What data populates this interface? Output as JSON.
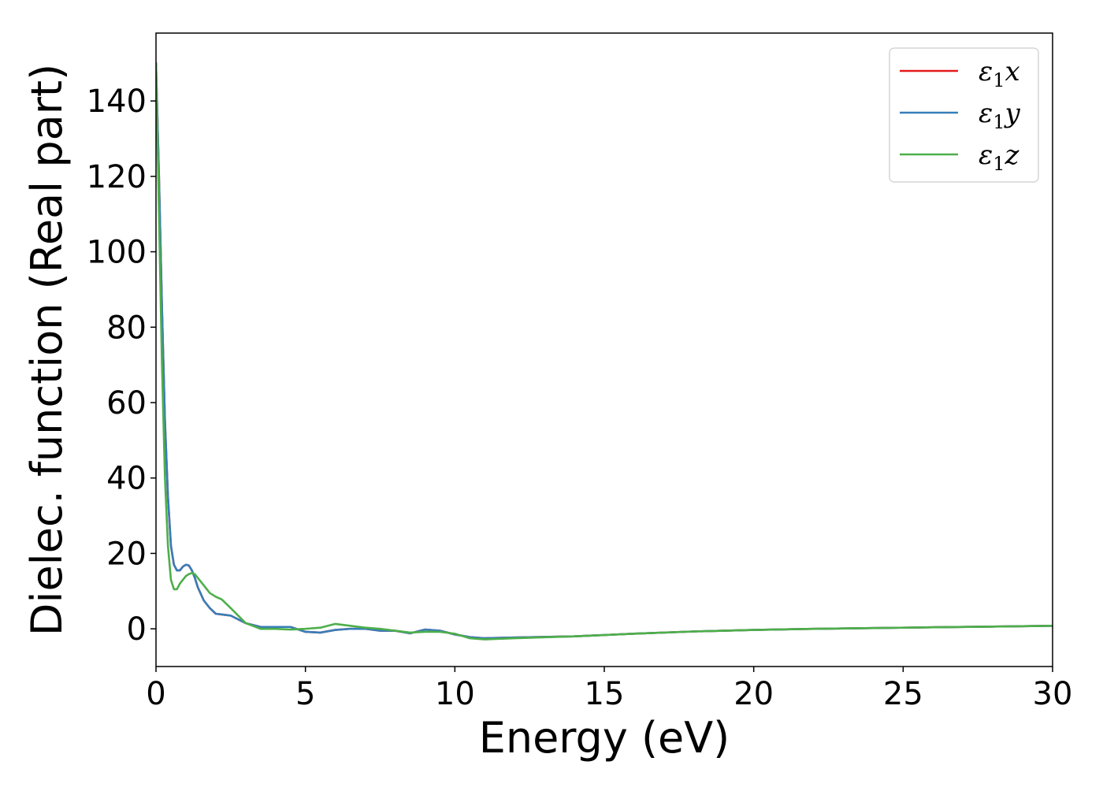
{
  "chart_data": {
    "type": "line",
    "xlabel": "Energy (eV)",
    "ylabel": "Dielec. function (Real part)",
    "xlim": [
      0,
      30
    ],
    "ylim": [
      -10,
      158
    ],
    "xticks": [
      0,
      5,
      10,
      15,
      20,
      25,
      30
    ],
    "yticks": [
      0,
      20,
      40,
      60,
      80,
      100,
      120,
      140
    ],
    "grid": false,
    "legend_position": "top-right",
    "series": [
      {
        "name": "ε1x",
        "label_base": "ε",
        "label_sub": "1",
        "label_var": "x",
        "color": "#e41a1c",
        "x": [
          0,
          0.1,
          0.2,
          0.3,
          0.4,
          0.5,
          0.6,
          0.7,
          0.8,
          0.9,
          1.0,
          1.1,
          1.2,
          1.3,
          1.4,
          1.6,
          1.8,
          2.0,
          2.2,
          2.5,
          3.0,
          3.5,
          4.0,
          4.5,
          5.0,
          5.5,
          6.0,
          6.5,
          7.0,
          7.5,
          8.0,
          8.5,
          9.0,
          9.5,
          10.0,
          10.5,
          11.0,
          12.0,
          14.0,
          16.0,
          18.0,
          20.0,
          22.0,
          24.0,
          26.0,
          28.0,
          30.0
        ],
        "values": [
          150,
          120,
          85,
          55,
          35,
          22,
          17,
          15.5,
          15.5,
          16.5,
          17,
          16.8,
          15.5,
          13.5,
          11,
          7.5,
          5.5,
          4,
          3.8,
          3.5,
          1.5,
          0.5,
          0.5,
          0.5,
          -0.8,
          -1,
          -0.3,
          0,
          0,
          -0.5,
          -0.5,
          -1.2,
          -0.2,
          -0.5,
          -1.5,
          -2.2,
          -2.5,
          -2.3,
          -2,
          -1.3,
          -0.7,
          -0.3,
          0,
          0.2,
          0.4,
          0.6,
          0.8
        ]
      },
      {
        "name": "ε1y",
        "label_base": "ε",
        "label_sub": "1",
        "label_var": "y",
        "color": "#377eb8",
        "x": [
          0,
          0.1,
          0.2,
          0.3,
          0.4,
          0.5,
          0.6,
          0.7,
          0.8,
          0.9,
          1.0,
          1.1,
          1.2,
          1.3,
          1.4,
          1.6,
          1.8,
          2.0,
          2.2,
          2.5,
          3.0,
          3.5,
          4.0,
          4.5,
          5.0,
          5.5,
          6.0,
          6.5,
          7.0,
          7.5,
          8.0,
          8.5,
          9.0,
          9.5,
          10.0,
          10.5,
          11.0,
          12.0,
          14.0,
          16.0,
          18.0,
          20.0,
          22.0,
          24.0,
          26.0,
          28.0,
          30.0
        ],
        "values": [
          150,
          120,
          85,
          55,
          35,
          22,
          17,
          15.5,
          15.5,
          16.5,
          17,
          16.8,
          15.5,
          13.5,
          11,
          7.5,
          5.5,
          4,
          3.8,
          3.5,
          1.5,
          0.5,
          0.5,
          0.5,
          -0.8,
          -1,
          -0.3,
          0,
          0,
          -0.5,
          -0.5,
          -1.2,
          -0.2,
          -0.5,
          -1.5,
          -2.2,
          -2.5,
          -2.3,
          -2,
          -1.3,
          -0.7,
          -0.3,
          0,
          0.2,
          0.4,
          0.6,
          0.8
        ]
      },
      {
        "name": "ε1z",
        "label_base": "ε",
        "label_sub": "1",
        "label_var": "z",
        "color": "#4daf4a",
        "x": [
          0,
          0.1,
          0.2,
          0.3,
          0.4,
          0.5,
          0.6,
          0.7,
          0.8,
          0.9,
          1.0,
          1.1,
          1.2,
          1.3,
          1.4,
          1.6,
          1.8,
          2.0,
          2.2,
          2.5,
          3.0,
          3.5,
          4.0,
          4.5,
          5.0,
          5.5,
          6.0,
          6.5,
          7.0,
          7.5,
          8.0,
          8.5,
          9.0,
          9.5,
          10.0,
          10.5,
          11.0,
          12.0,
          14.0,
          16.0,
          18.0,
          20.0,
          22.0,
          24.0,
          26.0,
          28.0,
          30.0
        ],
        "values": [
          150,
          110,
          70,
          40,
          22,
          13,
          10.5,
          10.5,
          12,
          13,
          14,
          14.5,
          14.8,
          14.5,
          13.5,
          11.5,
          9.5,
          8.5,
          7.8,
          5.5,
          1.5,
          0,
          0,
          -0.2,
          0,
          0.3,
          1.3,
          0.8,
          0.3,
          0,
          -0.5,
          -1,
          -0.8,
          -0.8,
          -1.3,
          -2.5,
          -2.8,
          -2.5,
          -2,
          -1.3,
          -0.7,
          -0.3,
          0,
          0.2,
          0.4,
          0.6,
          0.8
        ]
      }
    ]
  }
}
